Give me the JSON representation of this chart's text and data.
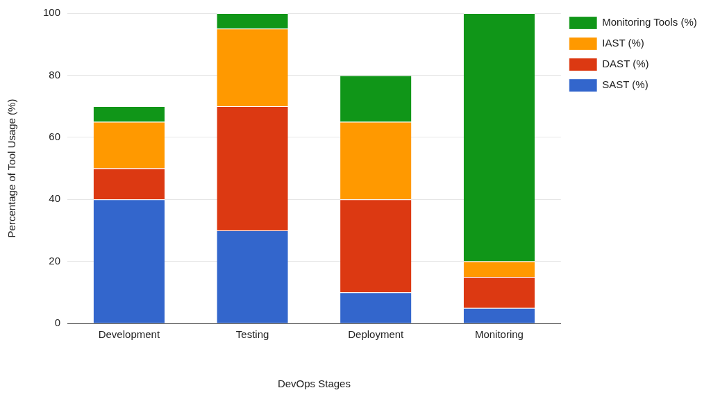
{
  "chart_data": {
    "type": "bar",
    "stacked": true,
    "xlabel": "DevOps Stages",
    "ylabel": "Percentage of Tool Usage (%)",
    "categories": [
      "Development",
      "Testing",
      "Deployment",
      "Monitoring"
    ],
    "series": [
      {
        "name": "SAST (%)",
        "color": "#3366cc",
        "values": [
          40,
          30,
          10,
          5
        ]
      },
      {
        "name": "DAST (%)",
        "color": "#dc3912",
        "values": [
          10,
          40,
          30,
          10
        ]
      },
      {
        "name": "IAST (%)",
        "color": "#ff9900",
        "values": [
          15,
          25,
          25,
          5
        ]
      },
      {
        "name": "Monitoring Tools (%)",
        "color": "#109618",
        "values": [
          5,
          5,
          15,
          80
        ]
      }
    ],
    "ylim": [
      0,
      100
    ],
    "yticks": [
      0,
      20,
      40,
      60,
      80,
      100
    ],
    "grid": "y",
    "legend": "top right"
  }
}
